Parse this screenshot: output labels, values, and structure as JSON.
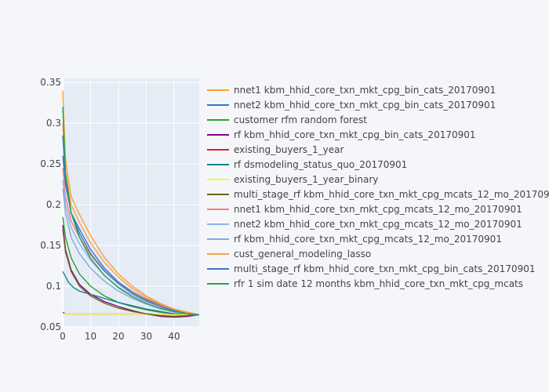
{
  "chart_data": {
    "type": "line",
    "title": "",
    "xlabel": "",
    "ylabel": "",
    "xlim": [
      0,
      49
    ],
    "ylim": [
      0.05,
      0.355
    ],
    "x_ticks": [
      0,
      10,
      20,
      30,
      40
    ],
    "y_ticks": [
      0.05,
      0.1,
      0.15,
      0.2,
      0.25,
      0.3,
      0.35
    ],
    "x_tick_labels": [
      "0",
      "10",
      "20",
      "30",
      "40"
    ],
    "y_tick_labels": [
      "0.05",
      "0.1",
      "0.15",
      "0.2",
      "0.25",
      "0.3",
      "0.35"
    ],
    "grid": true,
    "legend_position": "right",
    "series": [
      {
        "name": "nnet1 kbm_hhid_core_txn_mkt_cpg_bin_cats_20170901",
        "color": "#ff9f2e",
        "x": [
          0,
          1,
          3,
          6,
          10,
          15,
          20,
          25,
          30,
          35,
          40,
          45,
          49
        ],
        "y": [
          0.34,
          0.255,
          0.21,
          0.188,
          0.162,
          0.135,
          0.115,
          0.1,
          0.088,
          0.079,
          0.072,
          0.068,
          0.065
        ]
      },
      {
        "name": "nnet2 kbm_hhid_core_txn_mkt_cpg_bin_cats_20170901",
        "color": "#2e78c7",
        "x": [
          0,
          1,
          3,
          6,
          10,
          15,
          20,
          25,
          30,
          35,
          40,
          45,
          49
        ],
        "y": [
          0.26,
          0.225,
          0.19,
          0.17,
          0.145,
          0.122,
          0.105,
          0.093,
          0.084,
          0.077,
          0.071,
          0.067,
          0.065
        ]
      },
      {
        "name": "customer rfm random forest",
        "color": "#2ca02c",
        "x": [
          0,
          1,
          3,
          6,
          10,
          15,
          20,
          25,
          30,
          35,
          40,
          45,
          49
        ],
        "y": [
          0.185,
          0.16,
          0.135,
          0.115,
          0.1,
          0.088,
          0.08,
          0.075,
          0.071,
          0.068,
          0.066,
          0.065,
          0.065
        ]
      },
      {
        "name": "rf kbm_hhid_core_txn_mkt_cpg_bin_cats_20170901",
        "color": "#8b008b",
        "x": [
          0,
          1,
          3,
          6,
          10,
          15,
          20,
          25,
          30,
          35,
          40,
          45,
          49
        ],
        "y": [
          0.175,
          0.145,
          0.12,
          0.102,
          0.09,
          0.081,
          0.075,
          0.07,
          0.066,
          0.063,
          0.062,
          0.063,
          0.065
        ]
      },
      {
        "name": "existing_buyers_1_year",
        "color": "#d62728",
        "x": [
          0,
          1,
          3,
          10,
          20,
          30,
          40,
          49
        ],
        "y": [
          0.068,
          0.066,
          0.066,
          0.066,
          0.066,
          0.066,
          0.065,
          0.065
        ]
      },
      {
        "name": "rf dsmodeling_status_quo_20170901",
        "color": "#17808c",
        "x": [
          0,
          1,
          2,
          4,
          6,
          10,
          15,
          20,
          25,
          30,
          35,
          40,
          45,
          49
        ],
        "y": [
          0.118,
          0.112,
          0.105,
          0.098,
          0.094,
          0.09,
          0.085,
          0.08,
          0.076,
          0.072,
          0.069,
          0.066,
          0.065,
          0.065
        ]
      },
      {
        "name": "existing_buyers_1_year_binary",
        "color": "#f5f542",
        "x": [
          0,
          1,
          3,
          10,
          20,
          30,
          40,
          49
        ],
        "y": [
          0.066,
          0.066,
          0.066,
          0.066,
          0.066,
          0.066,
          0.065,
          0.065
        ]
      },
      {
        "name": "multi_stage_rf kbm_hhid_core_txn_mkt_cpg_mcats_12_mo_20170901",
        "color": "#6b6b14",
        "x": [
          0,
          1,
          3,
          6,
          10,
          15,
          20,
          25,
          30,
          35,
          40,
          45,
          49
        ],
        "y": [
          0.17,
          0.142,
          0.118,
          0.1,
          0.088,
          0.079,
          0.073,
          0.069,
          0.066,
          0.064,
          0.063,
          0.064,
          0.065
        ]
      },
      {
        "name": "nnet1 kbm_hhid_core_txn_mkt_cpg_mcats_12_mo_20170901",
        "color": "#f4826f",
        "x": [
          0,
          1,
          3,
          6,
          10,
          15,
          20,
          25,
          30,
          35,
          40,
          45,
          49
        ],
        "y": [
          0.245,
          0.21,
          0.18,
          0.16,
          0.138,
          0.118,
          0.103,
          0.092,
          0.083,
          0.076,
          0.071,
          0.067,
          0.065
        ]
      },
      {
        "name": "nnet2 kbm_hhid_core_txn_mkt_cpg_mcats_12_mo_20170901",
        "color": "#8fb4e8",
        "x": [
          0,
          1,
          3,
          6,
          10,
          15,
          20,
          25,
          30,
          35,
          40,
          45,
          49
        ],
        "y": [
          0.23,
          0.2,
          0.172,
          0.152,
          0.132,
          0.113,
          0.099,
          0.089,
          0.081,
          0.075,
          0.07,
          0.066,
          0.065
        ]
      },
      {
        "name": "rf kbm_hhid_core_txn_mkt_cpg_mcats_12_mo_20170901",
        "color": "#86a8d6",
        "x": [
          0,
          1,
          3,
          6,
          10,
          15,
          20,
          25,
          30,
          35,
          40,
          45,
          49
        ],
        "y": [
          0.22,
          0.19,
          0.16,
          0.14,
          0.122,
          0.106,
          0.094,
          0.085,
          0.078,
          0.072,
          0.068,
          0.066,
          0.065
        ]
      },
      {
        "name": "cust_general_modeling_lasso",
        "color": "#f7a348",
        "x": [
          0,
          1,
          3,
          6,
          10,
          15,
          20,
          25,
          30,
          35,
          40,
          45,
          49
        ],
        "y": [
          0.3,
          0.24,
          0.2,
          0.178,
          0.153,
          0.129,
          0.111,
          0.097,
          0.086,
          0.078,
          0.072,
          0.067,
          0.065
        ]
      },
      {
        "name": "multi_stage_rf kbm_hhid_core_txn_mkt_cpg_bin_cats_20170901",
        "color": "#3a78c2",
        "x": [
          0,
          1,
          3,
          6,
          10,
          15,
          20,
          25,
          30,
          35,
          40,
          45,
          49
        ],
        "y": [
          0.285,
          0.23,
          0.19,
          0.165,
          0.14,
          0.119,
          0.103,
          0.091,
          0.082,
          0.075,
          0.07,
          0.066,
          0.065
        ]
      },
      {
        "name": "rfr 1 sim date 12 months kbm_hhid_core_txn_mkt_cpg_mcats",
        "color": "#2e9e52",
        "x": [
          0,
          1,
          3,
          6,
          10,
          15,
          20,
          25,
          30,
          35,
          40,
          45,
          49
        ],
        "y": [
          0.32,
          0.24,
          0.19,
          0.16,
          0.134,
          0.113,
          0.098,
          0.087,
          0.079,
          0.073,
          0.069,
          0.066,
          0.065
        ]
      }
    ]
  }
}
